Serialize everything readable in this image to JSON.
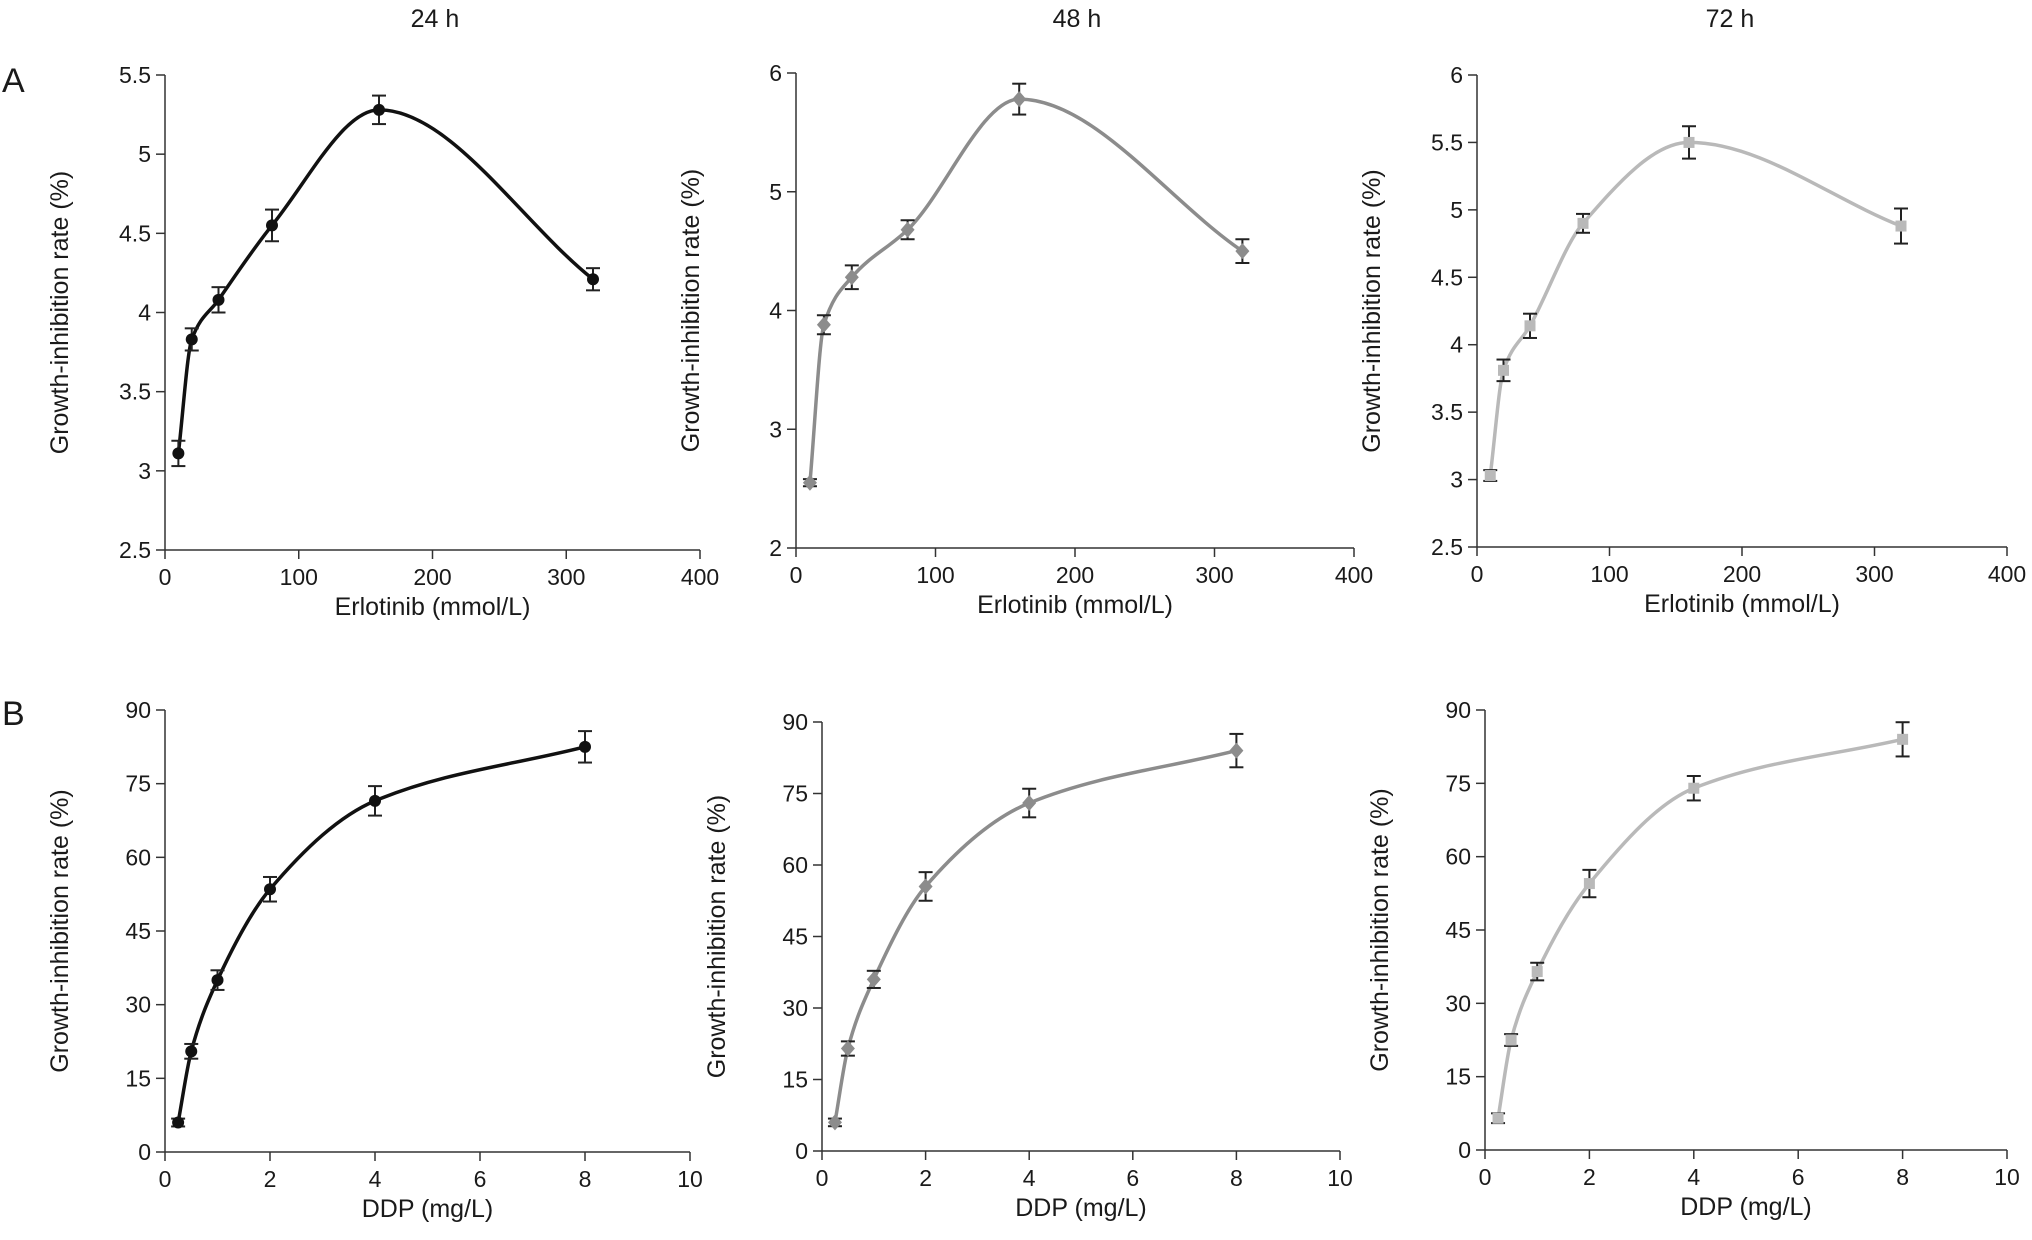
{
  "column_titles": [
    "24 h",
    "48 h",
    "72 h"
  ],
  "row_labels": [
    "A",
    "B"
  ],
  "chart_data": [
    {
      "type": "line",
      "row": "A",
      "title": "24 h",
      "xlabel": "Erlotinib (mmol/L)",
      "ylabel": "Growth-inhibition rate (%)",
      "xlim": [
        0,
        400
      ],
      "ylim": [
        2.5,
        5.5
      ],
      "xticks": [
        0,
        100,
        200,
        300,
        400
      ],
      "yticks": [
        2.5,
        3,
        3.5,
        4,
        4.5,
        5,
        5.5
      ],
      "xtick_labels": [
        "0",
        "100",
        "200",
        "300",
        "400"
      ],
      "ytick_labels": [
        "2.5",
        "3",
        "3.5",
        "4",
        "4.5",
        "5",
        "5.5"
      ],
      "color": "#111111",
      "marker": "circle",
      "grid": false,
      "x": [
        10,
        20,
        40,
        80,
        160,
        320
      ],
      "y": [
        3.11,
        3.83,
        4.08,
        4.55,
        5.28,
        4.21
      ],
      "err": [
        0.08,
        0.07,
        0.08,
        0.1,
        0.09,
        0.07
      ]
    },
    {
      "type": "line",
      "row": "A",
      "title": "48 h",
      "xlabel": "Erlotinib (mmol/L)",
      "ylabel": "Growth-inhibition rate (%)",
      "xlim": [
        0,
        400
      ],
      "ylim": [
        2,
        6
      ],
      "xticks": [
        0,
        100,
        200,
        300,
        400
      ],
      "yticks": [
        2,
        3,
        4,
        5,
        6
      ],
      "xtick_labels": [
        "0",
        "100",
        "200",
        "300",
        "400"
      ],
      "ytick_labels": [
        "2",
        "3",
        "4",
        "5",
        "6"
      ],
      "color": "#8c8c8c",
      "marker": "diamond",
      "grid": false,
      "x": [
        10,
        20,
        40,
        80,
        160,
        320
      ],
      "y": [
        2.55,
        3.88,
        4.28,
        4.68,
        5.78,
        4.5
      ],
      "err": [
        0.03,
        0.08,
        0.1,
        0.08,
        0.13,
        0.1
      ]
    },
    {
      "type": "line",
      "row": "A",
      "title": "72 h",
      "xlabel": "Erlotinib (mmol/L)",
      "ylabel": "Growth-inhibition rate (%)",
      "xlim": [
        0,
        400
      ],
      "ylim": [
        2.5,
        6
      ],
      "xticks": [
        0,
        100,
        200,
        300,
        400
      ],
      "yticks": [
        2.5,
        3,
        3.5,
        4,
        4.5,
        5,
        5.5,
        6
      ],
      "xtick_labels": [
        "0",
        "100",
        "200",
        "300",
        "400"
      ],
      "ytick_labels": [
        "2.5",
        "3",
        "3.5",
        "4",
        "4.5",
        "5",
        "5.5",
        "6"
      ],
      "color": "#b9b9b9",
      "marker": "square",
      "grid": false,
      "x": [
        10,
        20,
        40,
        80,
        160,
        320
      ],
      "y": [
        3.03,
        3.81,
        4.14,
        4.9,
        5.5,
        4.88
      ],
      "err": [
        0.04,
        0.08,
        0.09,
        0.07,
        0.12,
        0.13
      ]
    },
    {
      "type": "line",
      "row": "B",
      "title": "24 h",
      "xlabel": "DDP (mg/L)",
      "ylabel": "Growth-inhibition rate (%)",
      "xlim": [
        0,
        10
      ],
      "ylim": [
        0,
        90
      ],
      "xticks": [
        0,
        2,
        4,
        6,
        8,
        10
      ],
      "yticks": [
        0,
        15,
        30,
        45,
        60,
        75,
        90
      ],
      "xtick_labels": [
        "0",
        "2",
        "4",
        "6",
        "8",
        "10"
      ],
      "ytick_labels": [
        "0",
        "15",
        "30",
        "45",
        "60",
        "75",
        "90"
      ],
      "color": "#111111",
      "marker": "circle",
      "grid": false,
      "x": [
        0.25,
        0.5,
        1,
        2,
        4,
        8
      ],
      "y": [
        6,
        20.5,
        35,
        53.5,
        71.5,
        82.5
      ],
      "err": [
        0.8,
        1.5,
        2,
        2.5,
        3,
        3.2
      ]
    },
    {
      "type": "line",
      "row": "B",
      "title": "48 h",
      "xlabel": "DDP (mg/L)",
      "ylabel": "Growth-inhibition rate (%)",
      "xlim": [
        0,
        10
      ],
      "ylim": [
        0,
        90
      ],
      "xticks": [
        0,
        2,
        4,
        6,
        8,
        10
      ],
      "yticks": [
        0,
        15,
        30,
        45,
        60,
        75,
        90
      ],
      "xtick_labels": [
        "0",
        "2",
        "4",
        "6",
        "8",
        "10"
      ],
      "ytick_labels": [
        "0",
        "15",
        "30",
        "45",
        "60",
        "75",
        "90"
      ],
      "color": "#8c8c8c",
      "marker": "diamond",
      "grid": false,
      "x": [
        0.25,
        0.5,
        1,
        2,
        4,
        8
      ],
      "y": [
        6,
        21.5,
        36,
        55.5,
        73,
        84
      ],
      "err": [
        0.8,
        1.5,
        1.8,
        3,
        3,
        3.5
      ]
    },
    {
      "type": "line",
      "row": "B",
      "title": "72 h",
      "xlabel": "DDP (mg/L)",
      "ylabel": "Growth-inhibition rate (%)",
      "xlim": [
        0,
        10
      ],
      "ylim": [
        0,
        90
      ],
      "xticks": [
        0,
        2,
        4,
        6,
        8,
        10
      ],
      "yticks": [
        0,
        15,
        30,
        45,
        60,
        75,
        90
      ],
      "xtick_labels": [
        "0",
        "2",
        "4",
        "6",
        "8",
        "10"
      ],
      "ytick_labels": [
        "0",
        "15",
        "30",
        "45",
        "60",
        "75",
        "90"
      ],
      "color": "#b9b9b9",
      "marker": "square",
      "grid": false,
      "x": [
        0.25,
        0.5,
        1,
        2,
        4,
        8
      ],
      "y": [
        6.5,
        22.5,
        36.5,
        54.5,
        74,
        84
      ],
      "err": [
        1,
        1.2,
        1.8,
        2.8,
        2.5,
        3.5
      ]
    }
  ]
}
